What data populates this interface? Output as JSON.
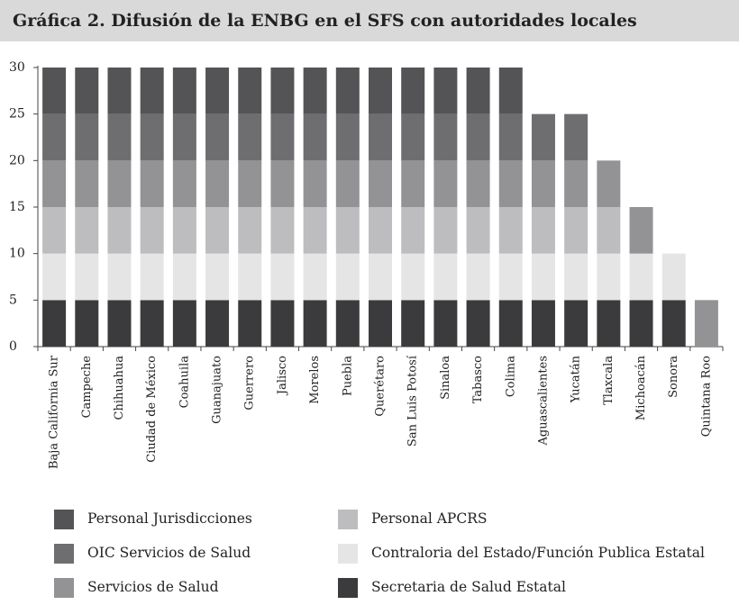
{
  "chart_data": {
    "type": "stacked_bar",
    "title": "Gráfica 2. Difusión de la ENBG en el SFS con autoridades locales",
    "categories": [
      "Baja California Sur",
      "Campeche",
      "Chihuahua",
      "Ciudad de México",
      "Coahuila",
      "Guanajuato",
      "Guerrero",
      "Jalisco",
      "Morelos",
      "Puebla",
      "Querétaro",
      "San Luis Potosí",
      "Sinaloa",
      "Tabasco",
      "Colima",
      "Aguascalientes",
      "Yucatán",
      "Tlaxcala",
      "Michoacán",
      "Sonora",
      "Quintana Roo"
    ],
    "series": [
      {
        "name": "Personal Jurisdicciones",
        "color": "#545456",
        "values": [
          5,
          5,
          5,
          5,
          5,
          5,
          5,
          5,
          5,
          5,
          5,
          5,
          5,
          5,
          5,
          0,
          0,
          0,
          0,
          0,
          0
        ]
      },
      {
        "name": "OIC Servicios de Salud",
        "color": "#6e6e70",
        "values": [
          5,
          5,
          5,
          5,
          5,
          5,
          5,
          5,
          5,
          5,
          5,
          5,
          5,
          5,
          5,
          5,
          5,
          0,
          0,
          0,
          0
        ]
      },
      {
        "name": "Servicios de Salud",
        "color": "#939396",
        "values": [
          5,
          5,
          5,
          5,
          5,
          5,
          5,
          5,
          5,
          5,
          5,
          5,
          5,
          5,
          5,
          5,
          5,
          5,
          5,
          0,
          5
        ]
      },
      {
        "name": "Personal APCRS",
        "color": "#bdbdbf",
        "values": [
          5,
          5,
          5,
          5,
          5,
          5,
          5,
          5,
          5,
          5,
          5,
          5,
          5,
          5,
          5,
          5,
          5,
          5,
          0,
          0,
          0
        ]
      },
      {
        "name": "Contraloria del Estado/Función Publica Estatal",
        "color": "#e5e5e6",
        "values": [
          5,
          5,
          5,
          5,
          5,
          5,
          5,
          5,
          5,
          5,
          5,
          5,
          5,
          5,
          5,
          5,
          5,
          5,
          5,
          5,
          0
        ]
      },
      {
        "name": "Secretaria de Salud Estatal",
        "color": "#3b3b3d",
        "values": [
          5,
          5,
          5,
          5,
          5,
          5,
          5,
          5,
          5,
          5,
          5,
          5,
          5,
          5,
          5,
          5,
          5,
          5,
          5,
          5,
          0
        ]
      }
    ],
    "ylim": [
      0,
      30
    ],
    "yticks": [
      0,
      5,
      10,
      15,
      20,
      25,
      30
    ]
  }
}
